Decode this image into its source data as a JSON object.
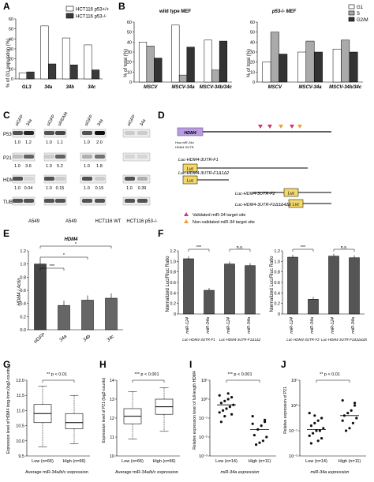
{
  "panels": {
    "A": {
      "letter": "A",
      "ylabel": "% of G1 population (%)",
      "legend": [
        "HCT116 p53+/+",
        "HCT116 p53-/-"
      ],
      "chart_data": {
        "type": "bar",
        "categories": [
          "GL3",
          "34a",
          "34b",
          "34c"
        ],
        "ylim": [
          0,
          60
        ],
        "yticks": [
          "0",
          "10",
          "20",
          "30",
          "40",
          "50",
          "60"
        ],
        "series": [
          {
            "name": "HCT116 p53+/+",
            "values": [
              6,
              53,
              41,
              34
            ]
          },
          {
            "name": "HCT116 p53-/-",
            "values": [
              7,
              15,
              14,
              9
            ]
          }
        ]
      }
    },
    "B1": {
      "letter": "B",
      "title": "wild type MEF",
      "ylabel": "% of total (%)",
      "chart_data": {
        "type": "bar",
        "categories": [
          "MSCV",
          "MSCV-34a",
          "MSCV-34b/34c"
        ],
        "ylim": [
          0,
          60
        ],
        "yticks": [
          "0",
          "10",
          "20",
          "30",
          "40",
          "50",
          "60"
        ],
        "series": [
          {
            "name": "G1",
            "values": [
              40,
              57,
              42
            ]
          },
          {
            "name": "S",
            "values": [
              36,
              7,
              12
            ]
          },
          {
            "name": "G2/M",
            "values": [
              24,
              35,
              41
            ]
          }
        ]
      }
    },
    "B2": {
      "title": "p53-/- MEF",
      "ylabel": "% of total (%)",
      "legend": [
        "G1",
        "S",
        "G2/M"
      ],
      "chart_data": {
        "type": "bar",
        "categories": [
          "MSCV",
          "MSCV-34a",
          "MSCV-34b/34c"
        ],
        "ylim": [
          0,
          60
        ],
        "yticks": [
          "0",
          "10",
          "20",
          "30",
          "40",
          "50",
          "60"
        ],
        "series": [
          {
            "name": "G1",
            "values": [
              20,
              30,
              33
            ]
          },
          {
            "name": "S",
            "values": [
              50,
              41,
              42
            ]
          },
          {
            "name": "G2/M",
            "values": [
              28,
              30,
              30
            ]
          }
        ]
      }
    },
    "C": {
      "letter": "C",
      "rows": [
        "P53",
        "P21",
        "HDM4",
        "TUB"
      ],
      "lanes": [
        "siGFP",
        "34a",
        "siGFP",
        "siHDM4",
        "siGFP",
        "34a",
        "siGFP",
        "34a"
      ],
      "p53_vals": [
        "1.0",
        "1.2",
        "1.0",
        "1.1",
        "1.0",
        "2.0",
        "",
        ""
      ],
      "p21_vals": [
        "1.0",
        "3.6",
        "1.0",
        "5.2",
        "1.0",
        "1.8",
        "",
        ""
      ],
      "hdm4_vals": [
        "1.0",
        "0.04",
        "1.0",
        "0.15",
        "1.0",
        "0.15",
        "1.0",
        "0.39"
      ],
      "groups": [
        "A549",
        "A549",
        "HCT116 WT",
        "HCT116 p53-/-"
      ]
    },
    "D": {
      "letter": "D",
      "gene": "HDM4",
      "seed_label": "Hsa-miR-34a",
      "utr_label": "HDM4 3'UTR",
      "constructs": [
        "Luc-HDM4-3UTR-F1",
        "Luc-HDM4-3UTR-F1Δ1Δ2",
        "Luc-HDM4-3UTR-F2",
        "Luc-HDM4-3UTR-F2Δ3Δ4Δ5"
      ],
      "luc": "Luc",
      "legend": [
        "Validated miR-34 target site",
        "Non-validated miR-34 target site"
      ]
    },
    "E": {
      "letter": "E",
      "title": "HDM4",
      "ylabel": "HDM4 / Actin",
      "sig": [
        "***",
        "*",
        "*"
      ],
      "chart_data": {
        "type": "bar",
        "categories": [
          "siGFP",
          "34a",
          "34b",
          "34c"
        ],
        "values": [
          1.0,
          0.37,
          0.45,
          0.48
        ],
        "ylim": [
          0,
          1.2
        ],
        "yticks": [
          "0.0",
          "0.2",
          "0.4",
          "0.6",
          "0.8",
          "1.0",
          "1.2"
        ]
      }
    },
    "F": {
      "letter": "F",
      "ylabel": "Normalized Luc/Rluc Ratio",
      "sig": [
        "***",
        "n.s.",
        "***",
        "n.s."
      ],
      "chart_data": [
        {
          "type": "bar",
          "categories": [
            "miR-124",
            "miR-34a",
            "miR-124",
            "miR-34a"
          ],
          "values": [
            1.05,
            0.45,
            0.95,
            0.92
          ],
          "groups": [
            "Luc-HDM4-3UTR-F1",
            "Luc-HDM4-3UTR-F1Δ1Δ2"
          ],
          "ylim": [
            0,
            1.2
          ],
          "yticks": [
            "0",
            "0.2",
            "0.4",
            "0.6",
            "0.8",
            "1.0",
            "1.2"
          ]
        },
        {
          "type": "bar",
          "categories": [
            "miR-124",
            "miR-34a",
            "miR-124",
            "miR-34a"
          ],
          "values": [
            1.08,
            0.28,
            1.1,
            1.07
          ],
          "groups": [
            "Luc-HDM4-3UTR-F2",
            "Luc-HDM4-3UTR-F2Δ3Δ4Δ5"
          ],
          "ylim": [
            0,
            1.2
          ],
          "yticks": [
            "0",
            "0.2",
            "0.4",
            "0.6",
            "0.8",
            "1.0",
            "1.2"
          ]
        }
      ]
    },
    "G": {
      "letter": "G",
      "ylabel": "Expression level of HDM4 long-form (log2-counts)",
      "pval": "** p < 0.01",
      "xlabel": "Average miR-34a/b/c expression",
      "chart_data": {
        "type": "box",
        "categories": [
          "Low (n=66)",
          "High (n=66)"
        ],
        "ylim": [
          9.5,
          12
        ],
        "yticks": [
          "9.5",
          "10.0",
          "10.5",
          "11.0",
          "11.5",
          "12.0"
        ],
        "boxes": [
          {
            "min": 9.8,
            "q1": 10.6,
            "median": 10.9,
            "q3": 11.2,
            "max": 11.8
          },
          {
            "min": 9.9,
            "q1": 10.4,
            "median": 10.6,
            "q3": 10.9,
            "max": 11.5
          }
        ]
      }
    },
    "H": {
      "letter": "H",
      "ylabel": "Expression level of P21 (log2-counts)",
      "pval": "*** p < 0.001",
      "xlabel": "Average miR-34a/b/c expression",
      "chart_data": {
        "type": "box",
        "categories": [
          "Low (n=66)",
          "High (n=66)"
        ],
        "ylim": [
          10,
          14
        ],
        "yticks": [
          "10",
          "11",
          "12",
          "13",
          "14"
        ],
        "boxes": [
          {
            "min": 10.9,
            "q1": 11.7,
            "median": 12.1,
            "q3": 12.5,
            "max": 13.4
          },
          {
            "min": 11.3,
            "q1": 12.2,
            "median": 12.6,
            "q3": 13.0,
            "max": 13.6
          }
        ]
      }
    },
    "I": {
      "letter": "I",
      "ylabel": "Relative expression level of full-length HDM4",
      "pval": "*** p < 0.001",
      "xlabel": "miR-34a expression",
      "chart_data": {
        "type": "scatter",
        "categories": [
          "Low (n=14)",
          "High (n=11)"
        ],
        "ylim": [
          -3,
          1
        ],
        "yticks": [
          "10⁻³",
          "10⁻²",
          "10⁻¹",
          "10⁰",
          "10¹"
        ],
        "series": [
          {
            "name": "Low (n=14)",
            "values": [
              0.2,
              0.1,
              0.0,
              -0.1,
              -0.2,
              -0.3,
              -0.4,
              -0.5,
              -0.6,
              -0.7,
              -0.8,
              0.3,
              -0.9,
              -1.2
            ]
          },
          {
            "name": "High (n=11)",
            "values": [
              -0.9,
              -1.2,
              -1.4,
              -1.6,
              -1.9,
              -2.0,
              -2.2,
              -2.3,
              -2.4,
              -1.3,
              -1.1
            ]
          }
        ],
        "mean": [
          -0.3,
          -1.6
        ]
      }
    },
    "J": {
      "letter": "J",
      "ylabel": "Relative expression of P21",
      "pval": "** p < 0.01",
      "xlabel": "miR-34a expression",
      "chart_data": {
        "type": "scatter",
        "categories": [
          "Low (n=14)",
          "High (n=11)"
        ],
        "ylim": [
          -2,
          1
        ],
        "yticks": [
          "10⁻²",
          "10⁻¹",
          "10⁰",
          "10¹"
        ],
        "series": [
          {
            "name": "Low (n=14)",
            "values": [
              -0.3,
              -0.5,
              -0.6,
              -0.7,
              -0.8,
              -0.9,
              -1.0,
              -1.0,
              -1.1,
              -1.2,
              -1.3,
              -1.4,
              -0.4,
              -1.5
            ]
          },
          {
            "name": "High (n=11)",
            "values": [
              0.2,
              0.0,
              -0.2,
              -0.3,
              -0.4,
              -0.5,
              -0.7,
              -0.9,
              -1.0,
              -0.6,
              0.1
            ]
          }
        ],
        "mean": [
          -0.95,
          -0.4
        ]
      }
    }
  }
}
